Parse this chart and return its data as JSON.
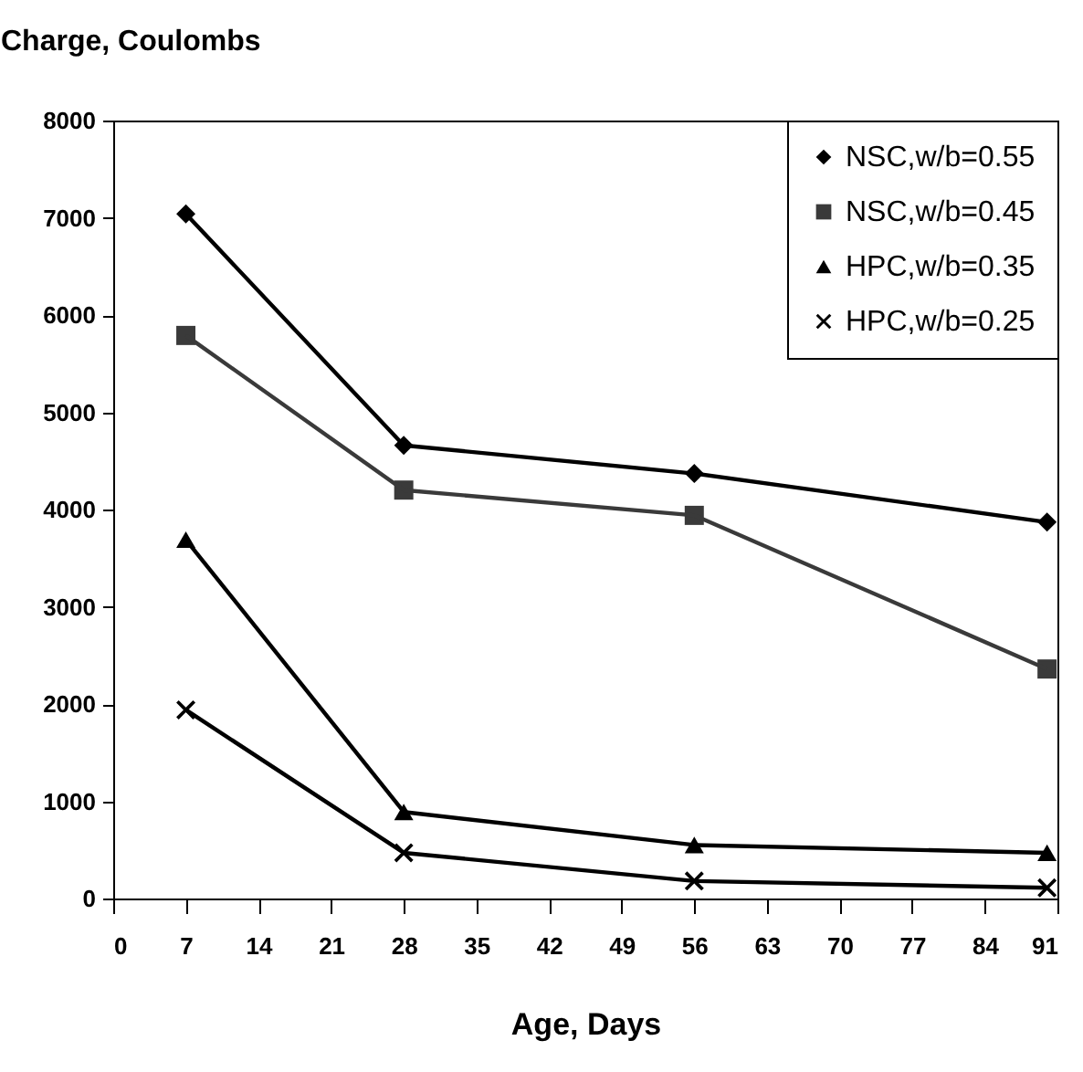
{
  "chart_data": {
    "type": "line",
    "ylabel": "Charge, Coulombs",
    "xlabel": "Age, Days",
    "x": [
      7,
      28,
      56,
      90
    ],
    "series": [
      {
        "name": "NSC,w/b=0.55",
        "color": "#000000",
        "marker": "diamond",
        "values": [
          7040,
          4660,
          4370,
          3870
        ]
      },
      {
        "name": "NSC,w/b=0.45",
        "color": "#3a3a3a",
        "marker": "square",
        "values": [
          5790,
          4200,
          3940,
          2360
        ]
      },
      {
        "name": "HPC,w/b=0.35",
        "color": "#000000",
        "marker": "triangle",
        "values": [
          3690,
          890,
          550,
          470
        ]
      },
      {
        "name": "HPC,w/b=0.25",
        "color": "#000000",
        "marker": "cross",
        "values": [
          1940,
          470,
          180,
          110
        ]
      }
    ],
    "xlim": [
      0,
      91
    ],
    "xticks": [
      0,
      7,
      14,
      21,
      28,
      35,
      42,
      49,
      56,
      63,
      70,
      77,
      84,
      91
    ],
    "ylim": [
      0,
      8000
    ],
    "yticks": [
      0,
      1000,
      2000,
      3000,
      4000,
      5000,
      6000,
      7000,
      8000
    ],
    "grid": false,
    "legend": "top right",
    "line_style": "solid"
  }
}
